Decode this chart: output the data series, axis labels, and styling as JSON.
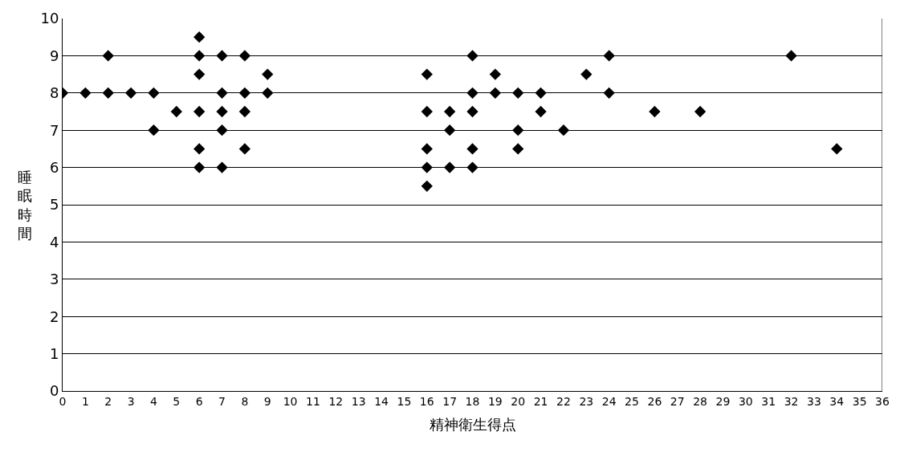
{
  "chart_data": {
    "type": "scatter",
    "xlabel": "精神衛生得点",
    "ylabel": "睡眠時間",
    "x": [
      0,
      1,
      2,
      2,
      3,
      4,
      4,
      5,
      6,
      6,
      6,
      6,
      6,
      6,
      7,
      7,
      7,
      7,
      7,
      8,
      8,
      8,
      8,
      9,
      9,
      16,
      16,
      16,
      16,
      16,
      17,
      17,
      17,
      18,
      18,
      18,
      18,
      18,
      19,
      19,
      20,
      20,
      20,
      21,
      21,
      22,
      23,
      24,
      24,
      26,
      28,
      32,
      34
    ],
    "values": [
      8,
      8,
      9,
      8,
      8,
      8,
      7,
      7.5,
      9.5,
      9,
      8.5,
      7.5,
      6.5,
      6,
      9,
      8,
      7.5,
      7,
      6,
      9,
      8,
      7.5,
      6.5,
      8.5,
      8,
      8.5,
      7.5,
      6.5,
      6,
      5.5,
      7.5,
      7,
      6,
      9,
      8,
      7.5,
      6.5,
      6,
      8.5,
      8,
      8,
      7,
      6.5,
      8,
      7.5,
      7,
      8.5,
      9,
      8,
      7.5,
      7.5,
      9,
      6.5
    ],
    "color": "#000000",
    "marker": "diamond",
    "xlim": [
      0,
      36
    ],
    "xticks": [
      0,
      1,
      2,
      3,
      4,
      5,
      6,
      7,
      8,
      9,
      10,
      11,
      12,
      13,
      14,
      15,
      16,
      17,
      18,
      19,
      20,
      21,
      22,
      23,
      24,
      25,
      26,
      27,
      28,
      29,
      30,
      31,
      32,
      33,
      34,
      35,
      36
    ],
    "ylim": [
      0,
      10
    ],
    "yticks": [
      0,
      1,
      2,
      3,
      4,
      5,
      6,
      7,
      8,
      9,
      10
    ],
    "grid": "y",
    "legend": false
  }
}
